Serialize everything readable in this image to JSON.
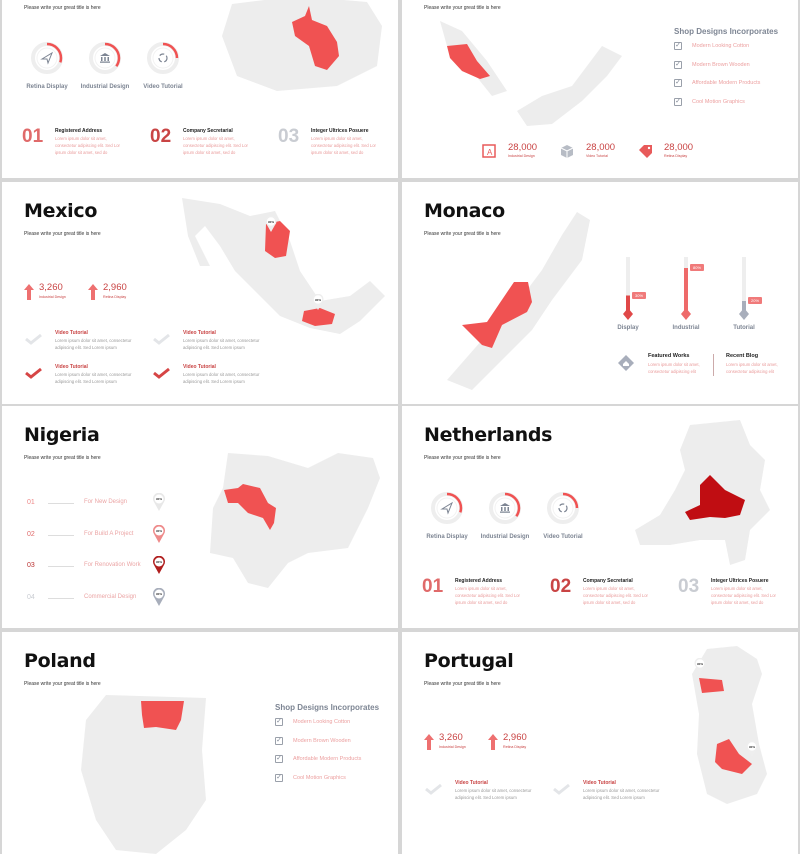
{
  "colors": {
    "accent": "#f05252",
    "dark_accent": "#c00d12",
    "map_gray": "#ededed",
    "muted": "#7d8593"
  },
  "slides": [
    {
      "subtitle": "Please write your great title is here",
      "rings": [
        {
          "label": "Retina Display",
          "icon": "paper-plane-icon",
          "progress": 30
        },
        {
          "label": "Industrial Design",
          "icon": "bank-icon",
          "progress": 35
        },
        {
          "label": "Video Tutorial",
          "icon": "recycle-icon",
          "progress": 25
        }
      ],
      "steps": [
        {
          "num": "01",
          "title": "Registered Address",
          "text": "Lorem ipsum dolor sit amet, consectetur adipiscing elit. Sed Lor ipsum dolor sit amet, sed do"
        },
        {
          "num": "02",
          "title": "Company Secretarial",
          "text": "Lorem ipsum dolor sit amet, consectetur adipiscing elit. Sed Lor ipsum dolor sit amet, sed do"
        },
        {
          "num": "03",
          "title": "Integer Ultrices Posuere",
          "text": "Lorem ipsum dolor sit amet, consectetur adipiscing elit. Sed Lor ipsum dolor sit amet, sed do"
        }
      ]
    },
    {
      "subtitle": "Please write your great title is here",
      "shop": {
        "heading": "Shop Designs Incorporates",
        "items": [
          "Modern Looking Cotton",
          "Modern Brown Wooden",
          "Affordable Modern Products",
          "Cool Motion Graphics"
        ]
      },
      "stats": [
        {
          "value": "28,000",
          "label": "Industrial Design",
          "icon": "design-book-icon"
        },
        {
          "value": "28,000",
          "label": "Video Tutorial",
          "icon": "box-icon"
        },
        {
          "value": "28,000",
          "label": "Retina Display",
          "icon": "tags-icon"
        }
      ]
    },
    {
      "title": "Mexico",
      "subtitle": "Please write your great title is here",
      "stats": [
        {
          "value": "3,260",
          "label": "Industrial Design"
        },
        {
          "value": "2,960",
          "label": "Retina Display"
        }
      ],
      "features": [
        {
          "title": "Video Tutorial",
          "text": "Lorem ipsum dolor sit amet, consectetur adipiscing elit. Sed Lorem ipsum",
          "checked": false
        },
        {
          "title": "Video Tutorial",
          "text": "Lorem ipsum dolor sit amet, consectetur adipiscing elit. Sed Lorem ipsum",
          "checked": false
        },
        {
          "title": "Video Tutorial",
          "text": "Lorem ipsum dolor sit amet, consectetur adipiscing elit. Sed Lorem ipsum",
          "checked": true
        },
        {
          "title": "Video Tutorial",
          "text": "Lorem ipsum dolor sit amet, consectetur adipiscing elit. Sed Lorem ipsum",
          "checked": true
        }
      ],
      "pins": [
        "90%",
        "90%"
      ]
    },
    {
      "title": "Monaco",
      "subtitle": "Please write your great title is here",
      "bars": [
        {
          "label": "Display",
          "value": 30,
          "text": "30%"
        },
        {
          "label": "Industrial",
          "value": 80,
          "text": "80%"
        },
        {
          "label": "Tutorial",
          "value": 20,
          "text": "20%"
        }
      ],
      "works": [
        {
          "title": "Featured Works",
          "text": "Lorem ipsum dolor sit amet, consectetur adipiscing elit"
        },
        {
          "title": "Recent Blog",
          "text": "Lorem ipsum dolor sit amet, consectetur adipiscing elit"
        }
      ]
    },
    {
      "title": "Nigeria",
      "subtitle": "Please write your great title is here",
      "list": [
        {
          "num": "01",
          "label": "For New Design",
          "pin": "90%"
        },
        {
          "num": "02",
          "label": "For Build A Project",
          "pin": "90%"
        },
        {
          "num": "03",
          "label": "For Renovation Work",
          "pin": "90%"
        },
        {
          "num": "04",
          "label": "Commercial Design",
          "pin": "90%"
        }
      ]
    },
    {
      "title": "Netherlands",
      "subtitle": "Please write your great title is here",
      "rings": [
        {
          "label": "Retina Display",
          "icon": "paper-plane-icon",
          "progress": 30
        },
        {
          "label": "Industrial Design",
          "icon": "bank-icon",
          "progress": 35
        },
        {
          "label": "Video Tutorial",
          "icon": "recycle-icon",
          "progress": 25
        }
      ],
      "steps": [
        {
          "num": "01",
          "title": "Registered Address",
          "text": "Lorem ipsum dolor sit amet, consectetur adipiscing elit. Sed Lor ipsum dolor sit amet, sed do"
        },
        {
          "num": "02",
          "title": "Company Secretarial",
          "text": "Lorem ipsum dolor sit amet, consectetur adipiscing elit. Sed Lor ipsum dolor sit amet, sed do"
        },
        {
          "num": "03",
          "title": "Integer Ultrices Posuere",
          "text": "Lorem ipsum dolor sit amet, consectetur adipiscing elit. Sed Lor ipsum dolor sit amet, sed do"
        }
      ]
    },
    {
      "title": "Poland",
      "subtitle": "Please write your great title is here",
      "shop": {
        "heading": "Shop Designs Incorporates",
        "items": [
          "Modern Looking Cotton",
          "Modern Brown Wooden",
          "Affordable Modern Products",
          "Cool Motion Graphics"
        ]
      }
    },
    {
      "title": "Portugal",
      "subtitle": "Please write your great title is here",
      "stats": [
        {
          "value": "3,260",
          "label": "Industrial Design"
        },
        {
          "value": "2,960",
          "label": "Retina Display"
        }
      ],
      "features": [
        {
          "title": "Video Tutorial",
          "text": "Lorem ipsum dolor sit amet, consectetur adipiscing elit. Sed Lorem ipsum",
          "checked": false
        },
        {
          "title": "Video Tutorial",
          "text": "Lorem ipsum dolor sit amet, consectetur adipiscing elit. Sed Lorem ipsum",
          "checked": false
        }
      ],
      "pins": [
        "90%",
        "90%"
      ]
    }
  ]
}
